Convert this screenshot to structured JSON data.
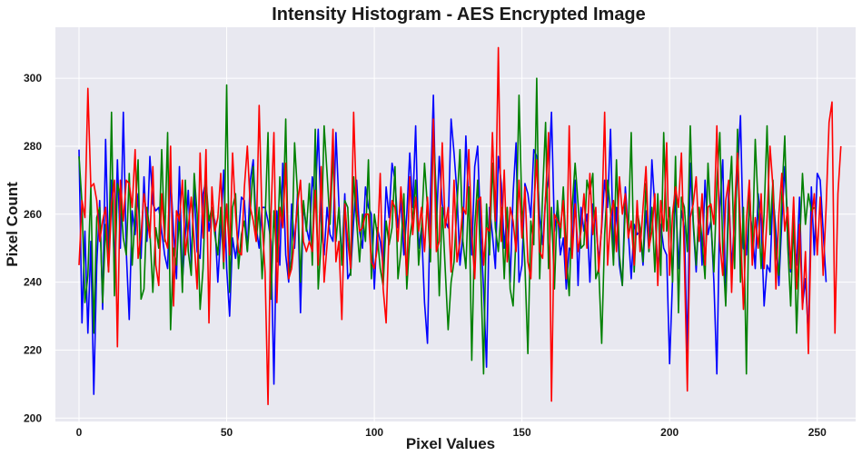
{
  "chart_data": {
    "type": "line",
    "title": "Intensity Histogram - AES Encrypted Image",
    "xlabel": "Pixel Values",
    "ylabel": "Pixel Count",
    "xlim": [
      -8,
      263
    ],
    "ylim": [
      199,
      315
    ],
    "xticks": [
      0,
      50,
      100,
      150,
      200,
      250
    ],
    "yticks": [
      200,
      220,
      240,
      260,
      280,
      300
    ],
    "grid": true,
    "background": "#e8e8f0",
    "series": [
      {
        "color": "#0000ff",
        "values": [
          279,
          228,
          255,
          225,
          252,
          207,
          245,
          264,
          232,
          282,
          248,
          270,
          244,
          276,
          250,
          290,
          249,
          229,
          261,
          254,
          266,
          247,
          271,
          252,
          277,
          263,
          261,
          262,
          255,
          248,
          244,
          271,
          255,
          241,
          274,
          240,
          254,
          267,
          245,
          268,
          249,
          247,
          266,
          270,
          255,
          261,
          258,
          240,
          255,
          273,
          244,
          230,
          253,
          247,
          254,
          265,
          264,
          249,
          270,
          276,
          256,
          250,
          262,
          262,
          258,
          252,
          210,
          261,
          245,
          275,
          248,
          240,
          263,
          250,
          266,
          231,
          263,
          256,
          252,
          271,
          264,
          285,
          258,
          248,
          262,
          254,
          252,
          284,
          263,
          246,
          266,
          241,
          243,
          258,
          270,
          255,
          250,
          268,
          262,
          260,
          238,
          256,
          252,
          245,
          268,
          259,
          275,
          270,
          256,
          264,
          248,
          260,
          278,
          262,
          286,
          250,
          256,
          234,
          222,
          265,
          295,
          256,
          277,
          263,
          258,
          256,
          288,
          278,
          266,
          245,
          254,
          283,
          262,
          248,
          274,
          280,
          255,
          238,
          215,
          262,
          254,
          244,
          277,
          269,
          250,
          261,
          240,
          266,
          281,
          240,
          245,
          269,
          266,
          259,
          279,
          277,
          259,
          251,
          265,
          270,
          290,
          255,
          262,
          248,
          253,
          238,
          250,
          249,
          270,
          239,
          262,
          255,
          260,
          240,
          263,
          258,
          246,
          256,
          270,
          262,
          285,
          247,
          262,
          245,
          239,
          268,
          255,
          241,
          257,
          254,
          255,
          245,
          261,
          249,
          276,
          262,
          243,
          257,
          250,
          248,
          216,
          241,
          267,
          244,
          261,
          256,
          219,
          275,
          257,
          243,
          262,
          245,
          270,
          254,
          258,
          240,
          213,
          262,
          276,
          234,
          268,
          244,
          258,
          272,
          289,
          250,
          248,
          262,
          255,
          244,
          266,
          258,
          233,
          245,
          243,
          266,
          255,
          239,
          258,
          274,
          257,
          243,
          254,
          245,
          265,
          233,
          241,
          224,
          268,
          248,
          272,
          270,
          255,
          240
        ]
      },
      {
        "color": "#008000",
        "values": [
          277,
          263,
          234,
          242,
          268,
          225,
          259,
          262,
          234,
          257,
          243,
          290,
          236,
          269,
          265,
          253,
          248,
          272,
          245,
          260,
          276,
          235,
          238,
          262,
          255,
          237,
          256,
          250,
          279,
          252,
          284,
          226,
          250,
          245,
          260,
          237,
          270,
          249,
          242,
          272,
          260,
          232,
          244,
          270,
          258,
          262,
          254,
          248,
          262,
          244,
          298,
          237,
          262,
          266,
          244,
          254,
          258,
          249,
          261,
          274,
          252,
          262,
          241,
          258,
          284,
          235,
          261,
          246,
          271,
          256,
          288,
          241,
          247,
          281,
          266,
          240,
          264,
          255,
          269,
          245,
          285,
          238,
          252,
          286,
          272,
          257,
          278,
          252,
          262,
          245,
          264,
          262,
          242,
          271,
          258,
          246,
          260,
          252,
          276,
          241,
          260,
          254,
          244,
          239,
          258,
          251,
          256,
          274,
          241,
          249,
          266,
          238,
          253,
          259,
          270,
          245,
          256,
          275,
          262,
          246,
          285,
          265,
          236,
          262,
          244,
          226,
          240,
          246,
          263,
          279,
          252,
          244,
          268,
          217,
          256,
          270,
          245,
          213,
          263,
          248,
          275,
          256,
          249,
          262,
          241,
          262,
          238,
          233,
          254,
          295,
          261,
          245,
          219,
          258,
          251,
          300,
          241,
          266,
          287,
          244,
          262,
          238,
          264,
          253,
          268,
          249,
          236,
          262,
          275,
          263,
          250,
          251,
          270,
          266,
          272,
          241,
          244,
          222,
          254,
          270,
          261,
          245,
          276,
          248,
          239,
          263,
          255,
          284,
          243,
          261,
          256,
          246,
          269,
          249,
          262,
          243,
          266,
          242,
          284,
          255,
          262,
          240,
          277,
          231,
          265,
          262,
          249,
          286,
          258,
          245,
          262,
          252,
          241,
          275,
          258,
          243,
          269,
          284,
          250,
          233,
          263,
          277,
          244,
          285,
          240,
          262,
          213,
          269,
          249,
          282,
          262,
          244,
          260,
          286,
          254,
          270,
          248,
          242,
          265,
          283,
          251,
          233,
          260,
          225,
          250,
          272,
          257,
          266,
          261,
          262
        ]
      },
      {
        "color": "#ff0000",
        "values": [
          245,
          264,
          259,
          297,
          268,
          269,
          264,
          252,
          258,
          262,
          243,
          263,
          270,
          221,
          270,
          258,
          270,
          269,
          262,
          279,
          247,
          254,
          266,
          259,
          253,
          274,
          245,
          239,
          266,
          253,
          250,
          280,
          233,
          261,
          258,
          270,
          248,
          256,
          265,
          252,
          238,
          278,
          253,
          279,
          228,
          268,
          255,
          259,
          272,
          246,
          263,
          248,
          278,
          260,
          249,
          248,
          268,
          280,
          262,
          258,
          252,
          292,
          258,
          243,
          204,
          260,
          284,
          234,
          262,
          256,
          275,
          241,
          244,
          253,
          263,
          270,
          252,
          249,
          252,
          249,
          267,
          245,
          274,
          240,
          251,
          262,
          285,
          246,
          252,
          229,
          263,
          252,
          244,
          290,
          262,
          255,
          256,
          260,
          260,
          246,
          244,
          250,
          272,
          238,
          228,
          256,
          264,
          262,
          252,
          268,
          256,
          242,
          271,
          254,
          265,
          255,
          262,
          249,
          265,
          250,
          288,
          249,
          252,
          281,
          256,
          262,
          243,
          270,
          246,
          252,
          262,
          260,
          279,
          254,
          241,
          264,
          265,
          245,
          256,
          255,
          284,
          258,
          309,
          252,
          273,
          246,
          262,
          258,
          249,
          270,
          253,
          268,
          246,
          241,
          262,
          276,
          249,
          247,
          265,
          284,
          205,
          260,
          258,
          256,
          264,
          241,
          286,
          247,
          263,
          249,
          255,
          266,
          250,
          272,
          254,
          262,
          243,
          257,
          290,
          245,
          259,
          264,
          249,
          271,
          260,
          266,
          253,
          258,
          245,
          264,
          249,
          262,
          274,
          250,
          255,
          266,
          239,
          264,
          255,
          281,
          242,
          260,
          268,
          262,
          278,
          246,
          208,
          259,
          263,
          271,
          252,
          266,
          245,
          262,
          263,
          257,
          286,
          252,
          242,
          264,
          270,
          237,
          262,
          278,
          256,
          232,
          258,
          270,
          245,
          259,
          250,
          266,
          244,
          259,
          280,
          268,
          238,
          260,
          272,
          255,
          262,
          244,
          265,
          238,
          257,
          232,
          249,
          219,
          258,
          266,
          248,
          265,
          242,
          262,
          287,
          293,
          225,
          266,
          280
        ]
      }
    ]
  }
}
